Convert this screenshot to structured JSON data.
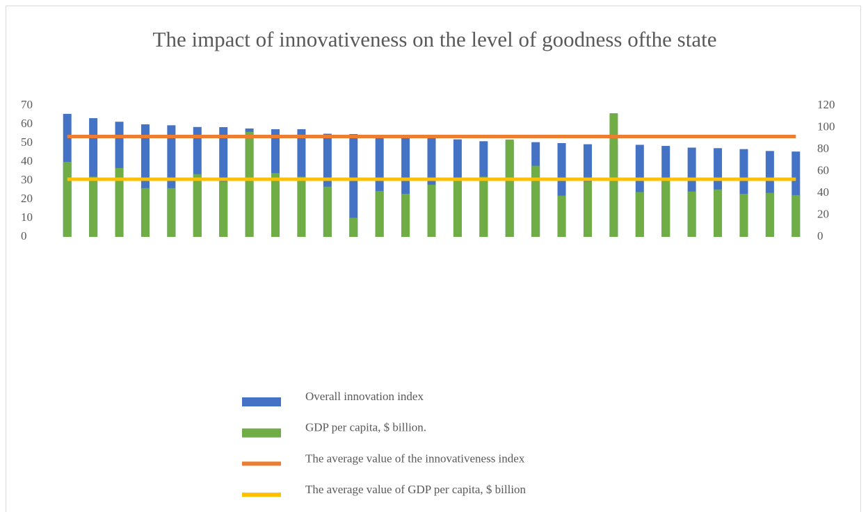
{
  "chart_data": {
    "type": "bar",
    "title": "The impact of innovativeness on the level of goodness ofthe state",
    "categories": [
      null,
      null,
      null,
      null,
      null,
      null,
      null,
      null,
      null,
      null,
      null,
      null,
      null,
      null,
      null,
      null,
      null,
      null,
      null,
      null,
      null,
      null,
      null,
      null,
      null,
      null,
      null,
      null,
      null
    ],
    "series": [
      {
        "name": "Overall innovation index",
        "color": "#4472c4",
        "axis": "y",
        "values": [
          65.6,
          63.3,
          61.4,
          60.0,
          59.5,
          58.6,
          58.5,
          57.8,
          57.4,
          57.4,
          55.0,
          54.8,
          53.5,
          53.3,
          53.0,
          52.0,
          51.0,
          51.0,
          50.5,
          50.0,
          49.4,
          49.3,
          49.1,
          48.5,
          47.6,
          47.3,
          46.8,
          45.8,
          45.5
        ]
      },
      {
        "name": "GDP per capita, $ billion.",
        "color": "#70ad47",
        "axis": "y2",
        "values": [
          68.6,
          55.0,
          63.0,
          44.6,
          44.6,
          57.4,
          50.6,
          96.0,
          58.3,
          54.9,
          45.9,
          17.5,
          42.0,
          39.4,
          47.7,
          53.0,
          55.0,
          89.0,
          65.0,
          37.7,
          50.6,
          113.0,
          41.0,
          51.4,
          41.5,
          43.4,
          39.4,
          40.3,
          38.2
        ]
      },
      {
        "name": "The average value of the innovativeness index",
        "color": "#ed7d31",
        "axis": "y",
        "type": "line",
        "values": [
          53.5,
          53.5,
          53.5,
          53.5,
          53.5,
          53.5,
          53.5,
          53.5,
          53.5,
          53.5,
          53.5,
          53.5,
          53.5,
          53.5,
          53.5,
          53.5,
          53.5,
          53.5,
          53.5,
          53.5,
          53.5,
          53.5,
          53.5,
          53.5,
          53.5,
          53.5,
          53.5,
          53.5,
          53.5
        ]
      },
      {
        "name": "The average value of GDP per capita, $ billion",
        "color": "#ffc000",
        "axis": "y2",
        "type": "line",
        "values": [
          52.7,
          52.7,
          52.7,
          52.7,
          52.7,
          52.7,
          52.7,
          52.7,
          52.7,
          52.7,
          52.7,
          52.7,
          52.7,
          52.7,
          52.7,
          52.7,
          52.7,
          52.7,
          52.7,
          52.7,
          52.7,
          52.7,
          52.7,
          52.7,
          52.7,
          52.7,
          52.7,
          52.7,
          52.7
        ]
      }
    ],
    "ylim": [
      0,
      70
    ],
    "yticks": [
      0,
      10,
      20,
      30,
      40,
      50,
      60,
      70
    ],
    "y2lim": [
      0,
      120
    ],
    "y2ticks": [
      0,
      20,
      40,
      60,
      80,
      100,
      120
    ],
    "grid": false,
    "legend": "bottom"
  }
}
